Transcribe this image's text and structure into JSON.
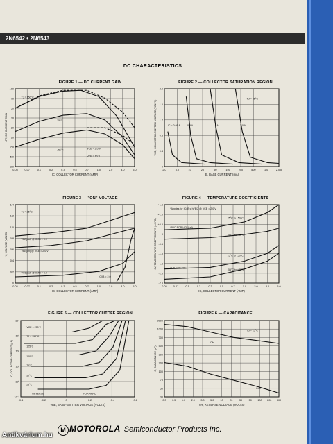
{
  "header": {
    "part_numbers": "2N6542 • 2N6543"
  },
  "section_title": "DC CHARACTERISTICS",
  "figures": [
    {
      "title": "FIGURE 1 — DC CURRENT GAIN",
      "ylabel": "hFE, DC CURRENT GAIN",
      "xlabel": "IC, COLLECTOR CURRENT (AMP)",
      "xticks": [
        "0.05",
        "0.07",
        "0.1",
        "0.2",
        "0.3",
        "0.5",
        "0.7",
        "1.0",
        "2.0",
        "3.0",
        "5.0"
      ],
      "yticks": [
        "100",
        "70",
        "50",
        "30",
        "20",
        "10",
        "7.0",
        "5.0",
        "3.0"
      ],
      "labels": [
        "TJ = 150°C",
        "25°C",
        "-55°C",
        "VCE = 2.0 V",
        "VCE = 10 V"
      ]
    },
    {
      "title": "FIGURE 2 — COLLECTOR SATURATION REGION",
      "ylabel": "VCE, COLLECTOR-EMITTER VOLTAGE (VOLTS)",
      "xlabel": "IB, BASE CURRENT (mA)",
      "xticks": [
        "2.0",
        "5.0",
        "10",
        "20",
        "50",
        "100",
        "200",
        "500",
        "1.0",
        "2.0 k"
      ],
      "yticks": [
        "2.0",
        "1.6",
        "1.2",
        "0.8",
        "0.4",
        "0"
      ],
      "labels": [
        "TJ = 25°C",
        "IC = 0.05 A",
        "0.5 A",
        "1 A",
        "3.0 A"
      ]
    },
    {
      "title": "FIGURE 3 — \"ON\" VOLTAGE",
      "ylabel": "V, VOLTAGE (VOLTS)",
      "xlabel": "IC, COLLECTOR CURRENT (AMP)",
      "xticks": [
        "0.05",
        "0.07",
        "0.1",
        "0.2",
        "0.3",
        "0.5",
        "0.7",
        "1.0",
        "2.0",
        "3.0",
        "5.0"
      ],
      "yticks": [
        "1.4",
        "1.2",
        "1.0",
        "0.8",
        "0.6",
        "0.4",
        "0.2",
        "0"
      ],
      "labels": [
        "TJ = 25°C",
        "VBE(sat) @ IC/IB = 5.0",
        "VBE(on) @ VCE = 2.0 V",
        "VCE(sat) @ IC/IB = 5.0",
        "IC/IB = 2.0"
      ]
    },
    {
      "title": "FIGURE 4 — TEMPERATURE COEFFICIENTS",
      "ylabel": "θV, TEMPERATURE COEFFICIENTS (mV/°C)",
      "xlabel": "IC, COLLECTOR CURRENT (AMP)",
      "xticks": [
        "0.05",
        "0.07",
        "0.1",
        "0.2",
        "0.3",
        "0.5",
        "0.7",
        "1.0",
        "2.0",
        "3.0",
        "5.0"
      ],
      "yticks": [
        "+1.5",
        "+1.0",
        "+0.5",
        "0",
        "-0.5",
        "-1.0",
        "-1.5",
        "-2.0",
        "-2.5"
      ],
      "labels": [
        "*Applies for IC/IB ≤ hFE/2 @ VCE = 2.0 V",
        "*θVC FOR VCE(sat)",
        "25°C to 150°C",
        "-55°C to +25°C",
        "θVB FOR VBE",
        "25°C to 150°C",
        "-55°C to +25°C"
      ]
    },
    {
      "title": "FIGURE 5 — COLLECTOR CUTOFF REGION",
      "ylabel": "IC, COLLECTOR CURRENT (μA)",
      "xlabel": "VBE, BASE-EMITTER VOLTAGE (VOLTS)",
      "xticks": [
        "-0.4",
        "-0.2",
        "0",
        "+0.2",
        "+0.4",
        "+0.6"
      ],
      "yticks": [
        "10⁴",
        "10³",
        "10²",
        "10¹",
        "10⁰",
        "10⁻¹"
      ],
      "labels": [
        "VCE = 250 V",
        "TJ = 150°C",
        "125°C",
        "100°C",
        "75°C",
        "50°C",
        "25°C",
        "REVERSE",
        "FORWARD"
      ]
    },
    {
      "title": "FIGURE 6 — CAPACITANCE",
      "ylabel": "C, CAPACITANCE (pF)",
      "xlabel": "VR, REVERSE VOLTAGE (VOLTS)",
      "xticks": [
        "0.3",
        "0.5",
        "1.0",
        "2.0",
        "3.0",
        "5.0",
        "10",
        "20",
        "30",
        "50",
        "100",
        "200",
        "300"
      ],
      "yticks": [
        "2000",
        "1000",
        "700",
        "500",
        "300",
        "200",
        "100",
        "70",
        "50",
        "30"
      ],
      "labels": [
        "TJ = 25°C",
        "Cib",
        "Cob"
      ]
    }
  ],
  "footer": {
    "logo": "M",
    "brand": "MOTOROLA",
    "division": "Semiconductor Products Inc."
  },
  "watermark": "Antikvárium.hu"
}
